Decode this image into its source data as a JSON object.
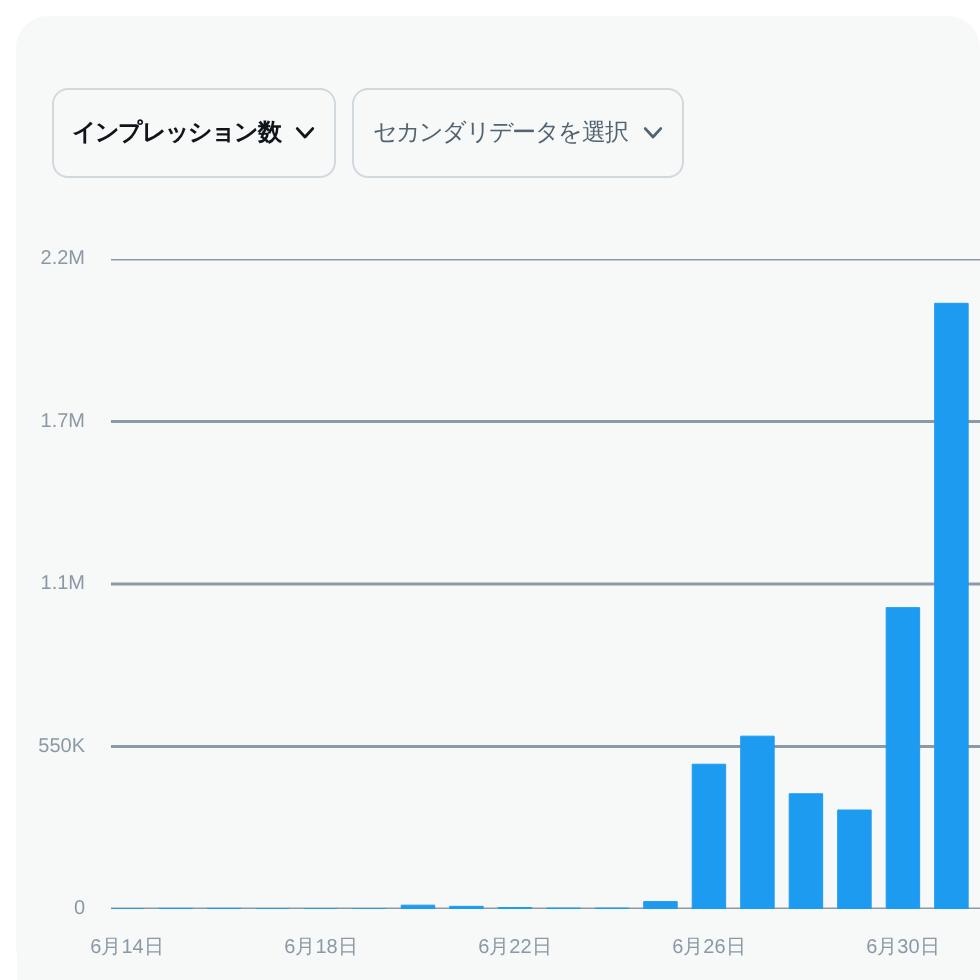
{
  "chart_data": {
    "type": "bar",
    "title": "インプレッション数",
    "annotations": [
      "セカンダリデータを選択"
    ],
    "categories": [
      "6月14日",
      null,
      null,
      null,
      "6月18日",
      null,
      null,
      null,
      "6月22日",
      null,
      null,
      null,
      "6月26日",
      null,
      null,
      null,
      "6月30日",
      null
    ],
    "values": [
      0,
      2000,
      2000,
      0,
      0,
      0,
      13000,
      9000,
      5000,
      3000,
      3000,
      25000,
      490000,
      585000,
      390000,
      335000,
      1020000,
      2050000
    ],
    "color": "#1d9bf0",
    "ylim": [
      0,
      2200000
    ],
    "yticks": [
      0,
      {
        "value": 550000,
        "label": "550K"
      },
      {
        "value": 1100000,
        "label": "1.1M"
      },
      {
        "value": 1650000,
        "label": "1.7M"
      },
      {
        "value": 2200000,
        "label": "2.2M"
      }
    ],
    "grid": "y"
  }
}
